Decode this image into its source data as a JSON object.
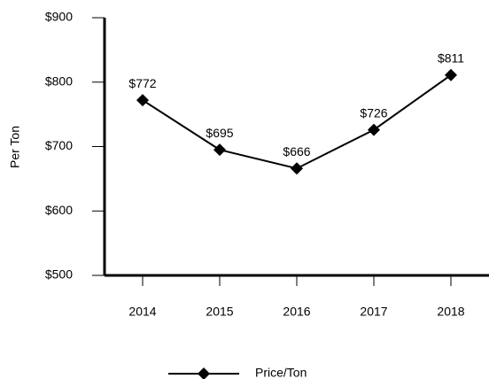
{
  "chart_data": {
    "type": "line",
    "axis_label_y": "Per Ton",
    "categories": [
      "2014",
      "2015",
      "2016",
      "2017",
      "2018"
    ],
    "series": [
      {
        "name": "Price/Ton",
        "color": "#000000",
        "values": [
          772,
          695,
          666,
          726,
          811
        ],
        "value_labels": [
          "$772",
          "$695",
          "$666",
          "$726",
          "$811"
        ]
      }
    ],
    "ylim": [
      500,
      900
    ],
    "yticks": [
      {
        "value": 500,
        "label": "$500"
      },
      {
        "value": 600,
        "label": "$600"
      },
      {
        "value": 700,
        "label": "$700"
      },
      {
        "value": 800,
        "label": "$800"
      },
      {
        "value": 900,
        "label": "$900"
      }
    ],
    "legend": "bottom"
  }
}
